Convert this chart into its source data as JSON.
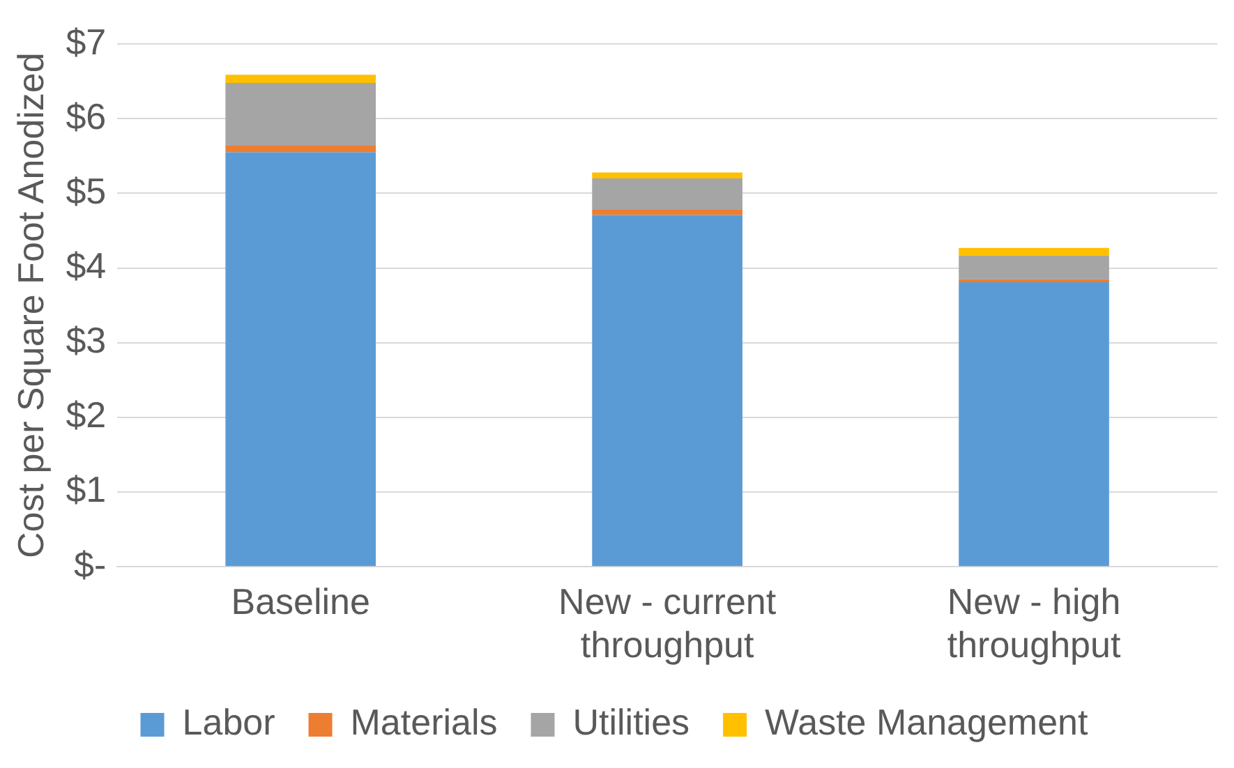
{
  "chart_data": {
    "type": "bar",
    "stacked": true,
    "ylabel": "Cost per Square Foot Anodized",
    "categories": [
      "Baseline",
      "New - current throughput",
      "New - high throughput"
    ],
    "series": [
      {
        "name": "Labor",
        "color": "#5b9bd5",
        "values": [
          5.55,
          4.71,
          3.81
        ]
      },
      {
        "name": "Materials",
        "color": "#ed7d31",
        "values": [
          0.09,
          0.07,
          0.04
        ]
      },
      {
        "name": "Utilities",
        "color": "#a5a5a5",
        "values": [
          0.84,
          0.42,
          0.32
        ]
      },
      {
        "name": "Waste Management",
        "color": "#ffc000",
        "values": [
          0.11,
          0.08,
          0.1
        ]
      }
    ],
    "ylim": [
      0,
      7
    ],
    "yticks": [
      {
        "value": 0,
        "label": "$-"
      },
      {
        "value": 1,
        "label": "$1"
      },
      {
        "value": 2,
        "label": "$2"
      },
      {
        "value": 3,
        "label": "$3"
      },
      {
        "value": 4,
        "label": "$4"
      },
      {
        "value": 5,
        "label": "$5"
      },
      {
        "value": 6,
        "label": "$6"
      },
      {
        "value": 7,
        "label": "$7"
      }
    ],
    "grid": "y",
    "legend": "bottom"
  }
}
